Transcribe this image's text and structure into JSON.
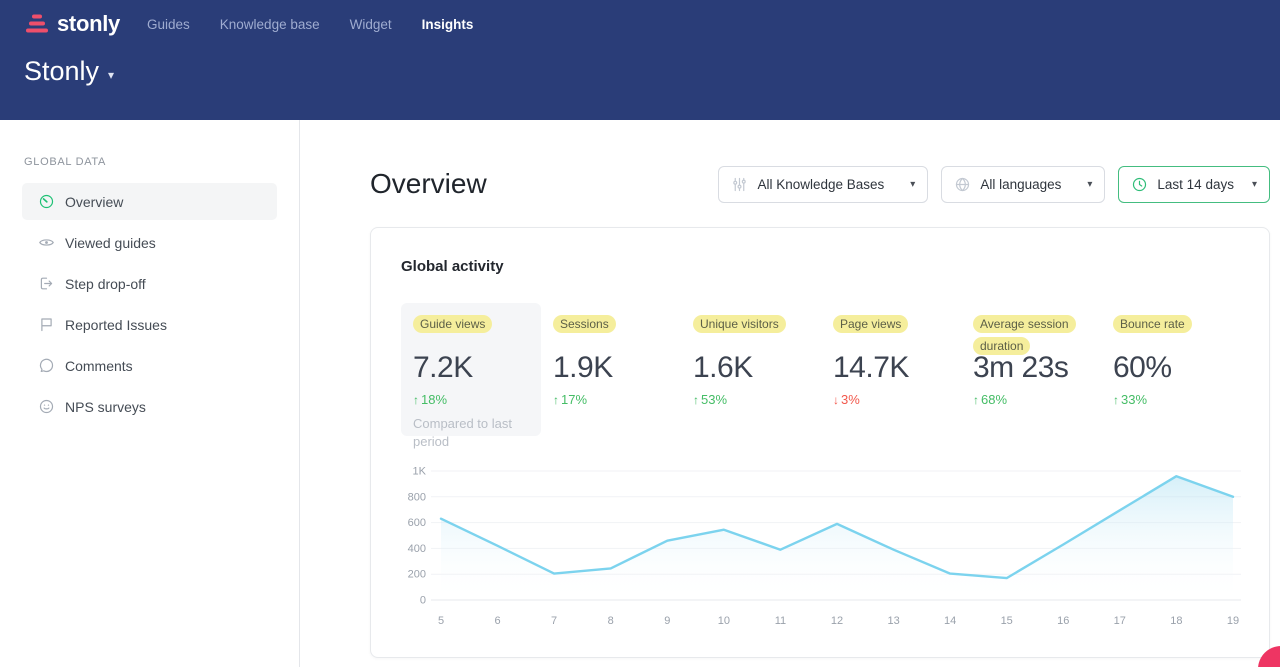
{
  "header": {
    "logo_text": "stonly",
    "workspace_title": "Stonly",
    "nav": [
      {
        "label": "Guides",
        "active": false
      },
      {
        "label": "Knowledge base",
        "active": false
      },
      {
        "label": "Widget",
        "active": false
      },
      {
        "label": "Insights",
        "active": true
      }
    ]
  },
  "sidebar": {
    "section_label": "GLOBAL DATA",
    "items": [
      {
        "label": "Overview",
        "icon": "gauge-icon",
        "active": true
      },
      {
        "label": "Viewed guides",
        "icon": "eye-icon",
        "active": false
      },
      {
        "label": "Step drop-off",
        "icon": "step-exit-icon",
        "active": false
      },
      {
        "label": "Reported Issues",
        "icon": "flag-icon",
        "active": false
      },
      {
        "label": "Comments",
        "icon": "comment-icon",
        "active": false
      },
      {
        "label": "NPS surveys",
        "icon": "smiley-icon",
        "active": false
      }
    ]
  },
  "main": {
    "page_title": "Overview",
    "filters": {
      "knowledge_bases": {
        "label": "All Knowledge Bases",
        "icon": "sliders-icon"
      },
      "languages": {
        "label": "All languages",
        "icon": "globe-icon"
      },
      "date_range": {
        "label": "Last 14 days",
        "icon": "clock-icon"
      }
    },
    "card": {
      "title": "Global activity",
      "metrics": [
        {
          "label": "Guide views",
          "value": "7.2K",
          "change": "18%",
          "direction": "up",
          "note": "Compared to last period",
          "selected": true
        },
        {
          "label": "Sessions",
          "value": "1.9K",
          "change": "17%",
          "direction": "up",
          "selected": false
        },
        {
          "label": "Unique visitors",
          "value": "1.6K",
          "change": "53%",
          "direction": "up",
          "selected": false
        },
        {
          "label": "Page views",
          "value": "14.7K",
          "change": "3%",
          "direction": "down",
          "selected": false
        },
        {
          "label": "Average session duration",
          "value": "3m 23s",
          "change": "68%",
          "direction": "up",
          "selected": false
        },
        {
          "label": "Bounce rate",
          "value": "60%",
          "change": "33%",
          "direction": "up",
          "selected": false
        }
      ]
    }
  },
  "chart_data": {
    "type": "area",
    "title": "Global activity",
    "series_name": "Guide views",
    "x": [
      5,
      6,
      7,
      8,
      9,
      10,
      11,
      12,
      13,
      14,
      15,
      16,
      17,
      18,
      19
    ],
    "values": [
      630,
      420,
      205,
      245,
      460,
      545,
      390,
      590,
      390,
      205,
      170,
      430,
      695,
      960,
      800
    ],
    "ylim": [
      0,
      1000
    ],
    "yticks": [
      0,
      200,
      400,
      600,
      800,
      1000
    ],
    "ytick_labels": [
      "0",
      "200",
      "400",
      "600",
      "800",
      "1K"
    ],
    "grid": true,
    "legend": "none",
    "line_color": "#7cd3ee",
    "fill_color": "#ade0f2"
  },
  "colors": {
    "header_bg": "#2a3d78",
    "accent_pink": "#ee4f6b",
    "positive_green": "#45bd66",
    "negative_red": "#f2584c",
    "highlight_yellow": "#f5ee9c",
    "active_icon_green": "#1fc175",
    "date_filter_border": "#44bd80",
    "chart_line": "#7cd3ee"
  }
}
